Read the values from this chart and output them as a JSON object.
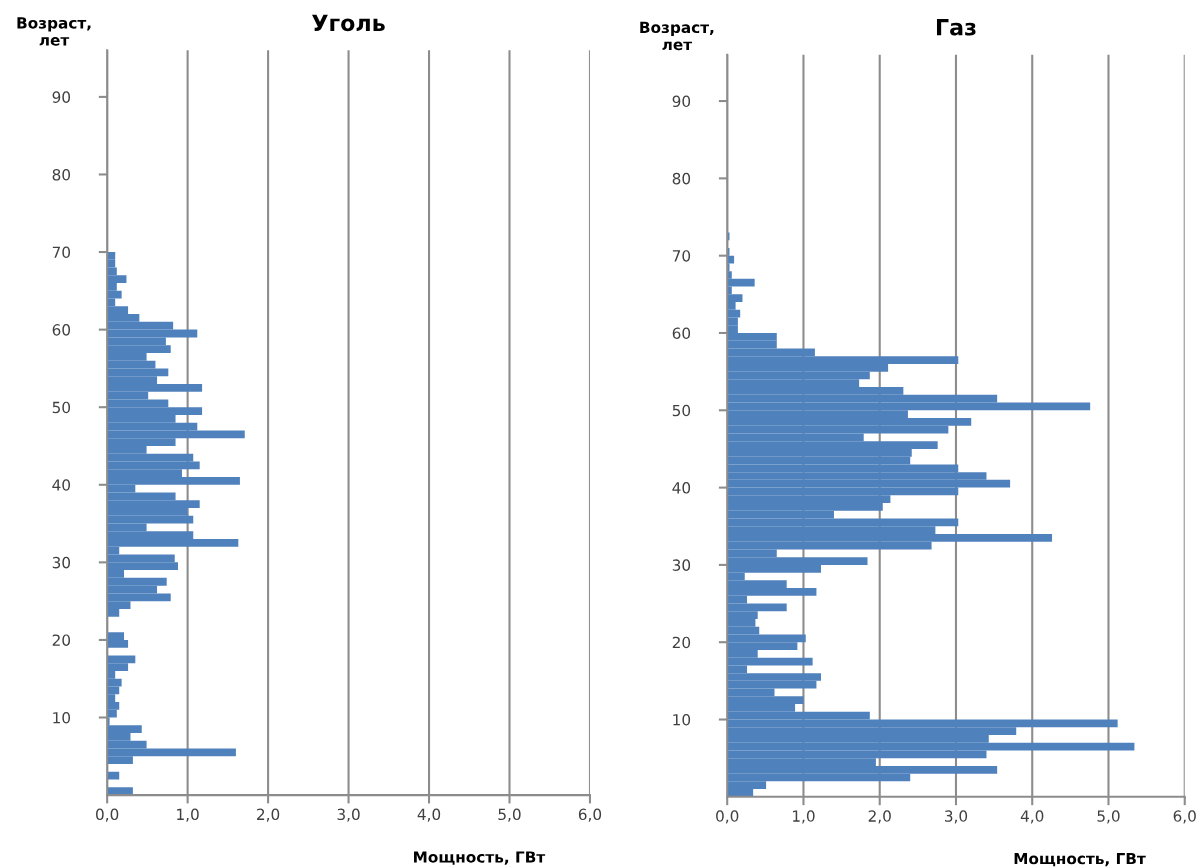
{
  "chart_data": [
    {
      "type": "bar",
      "orientation": "horizontal",
      "title": "Уголь",
      "ylabel": "Возраст,\nлет",
      "xlabel": "Мощность, ГВт",
      "color": "#4f81bd",
      "grid": "x",
      "x": [
        0,
        1,
        2,
        3,
        4,
        5,
        6,
        7,
        8,
        9,
        10,
        11,
        12,
        13,
        14,
        15,
        16,
        17,
        18,
        19,
        20,
        21,
        22,
        23,
        24,
        25,
        26,
        27,
        28,
        29,
        30,
        31,
        32,
        33,
        34,
        35,
        36,
        37,
        38,
        39,
        40,
        41,
        42,
        43,
        44,
        45,
        46,
        47,
        48,
        49,
        50,
        51,
        52,
        53,
        54,
        55,
        56,
        57,
        58,
        59,
        60,
        61,
        62,
        63,
        64,
        65,
        66,
        67,
        68,
        69
      ],
      "values": [
        0.32,
        0,
        0.15,
        0,
        0.32,
        1.6,
        0.49,
        0.29,
        0.43,
        0.03,
        0.12,
        0.15,
        0.1,
        0.15,
        0.18,
        0.1,
        0.26,
        0.35,
        0,
        0.26,
        0.21,
        0,
        0,
        0.15,
        0.29,
        0.79,
        0.62,
        0.74,
        0.21,
        0.88,
        0.84,
        0.15,
        1.63,
        1.07,
        0.49,
        1.07,
        1.0,
        1.15,
        0.85,
        0.35,
        1.65,
        0.93,
        1.15,
        1.07,
        0.49,
        0.85,
        1.71,
        1.12,
        0.85,
        1.18,
        0.76,
        0.51,
        1.18,
        0.62,
        0.76,
        0.6,
        0.49,
        0.79,
        0.73,
        1.12,
        0.82,
        0.4,
        0.26,
        0.1,
        0.18,
        0.12,
        0.24,
        0.12,
        0.1,
        0.1
      ],
      "xlim": [
        0,
        6
      ],
      "xticks": [
        {
          "value": 0,
          "label": "0,0"
        },
        {
          "value": 1,
          "label": "1,0"
        },
        {
          "value": 2,
          "label": "2,0"
        },
        {
          "value": 3,
          "label": "3,0"
        },
        {
          "value": 4,
          "label": "4,0"
        },
        {
          "value": 5,
          "label": "5,0"
        },
        {
          "value": 6,
          "label": "6,0"
        }
      ],
      "ylim": [
        0,
        96
      ],
      "yticks": [
        10,
        20,
        30,
        40,
        50,
        60,
        70,
        80,
        90
      ]
    },
    {
      "type": "bar",
      "orientation": "horizontal",
      "title": "Газ",
      "ylabel": "Возраст,\nлет",
      "xlabel": "Мощность, ГВт",
      "color": "#4f81bd",
      "grid": "x",
      "x": [
        0,
        1,
        2,
        3,
        4,
        5,
        6,
        7,
        8,
        9,
        10,
        11,
        12,
        13,
        14,
        15,
        16,
        17,
        18,
        19,
        20,
        21,
        22,
        23,
        24,
        25,
        26,
        27,
        28,
        29,
        30,
        31,
        32,
        33,
        34,
        35,
        36,
        37,
        38,
        39,
        40,
        41,
        42,
        43,
        44,
        45,
        46,
        47,
        48,
        49,
        50,
        51,
        52,
        53,
        54,
        55,
        56,
        57,
        58,
        59,
        60,
        61,
        62,
        63,
        64,
        65,
        66,
        67,
        68,
        69,
        70,
        71,
        72
      ],
      "values": [
        0.34,
        0.51,
        2.4,
        3.54,
        1.95,
        3.4,
        5.34,
        3.43,
        3.79,
        5.12,
        1.87,
        0.89,
        1.0,
        0.62,
        1.17,
        1.23,
        0.26,
        1.12,
        0.4,
        0.92,
        1.03,
        0.42,
        0.37,
        0.4,
        0.78,
        0.26,
        1.17,
        0.78,
        0.23,
        1.23,
        1.84,
        0.65,
        2.68,
        4.26,
        2.73,
        3.03,
        1.4,
        2.04,
        2.14,
        3.03,
        3.71,
        3.4,
        3.03,
        2.4,
        2.42,
        2.76,
        1.79,
        2.9,
        3.2,
        2.37,
        4.76,
        3.54,
        2.31,
        1.73,
        1.87,
        2.11,
        3.03,
        1.15,
        0.65,
        0.65,
        0.14,
        0.14,
        0.17,
        0.11,
        0.2,
        0.06,
        0.36,
        0.06,
        0.03,
        0.09,
        0.03,
        0,
        0.03
      ],
      "xlim": [
        0,
        6
      ],
      "xticks": [
        {
          "value": 0,
          "label": "0,0"
        },
        {
          "value": 1,
          "label": "1,0"
        },
        {
          "value": 2,
          "label": "2,0"
        },
        {
          "value": 3,
          "label": "3,0"
        },
        {
          "value": 4,
          "label": "4,0"
        },
        {
          "value": 5,
          "label": "5,0"
        },
        {
          "value": 6,
          "label": "6,0"
        }
      ],
      "ylim": [
        0,
        96
      ],
      "yticks": [
        10,
        20,
        30,
        40,
        50,
        60,
        70,
        80,
        90
      ]
    }
  ]
}
